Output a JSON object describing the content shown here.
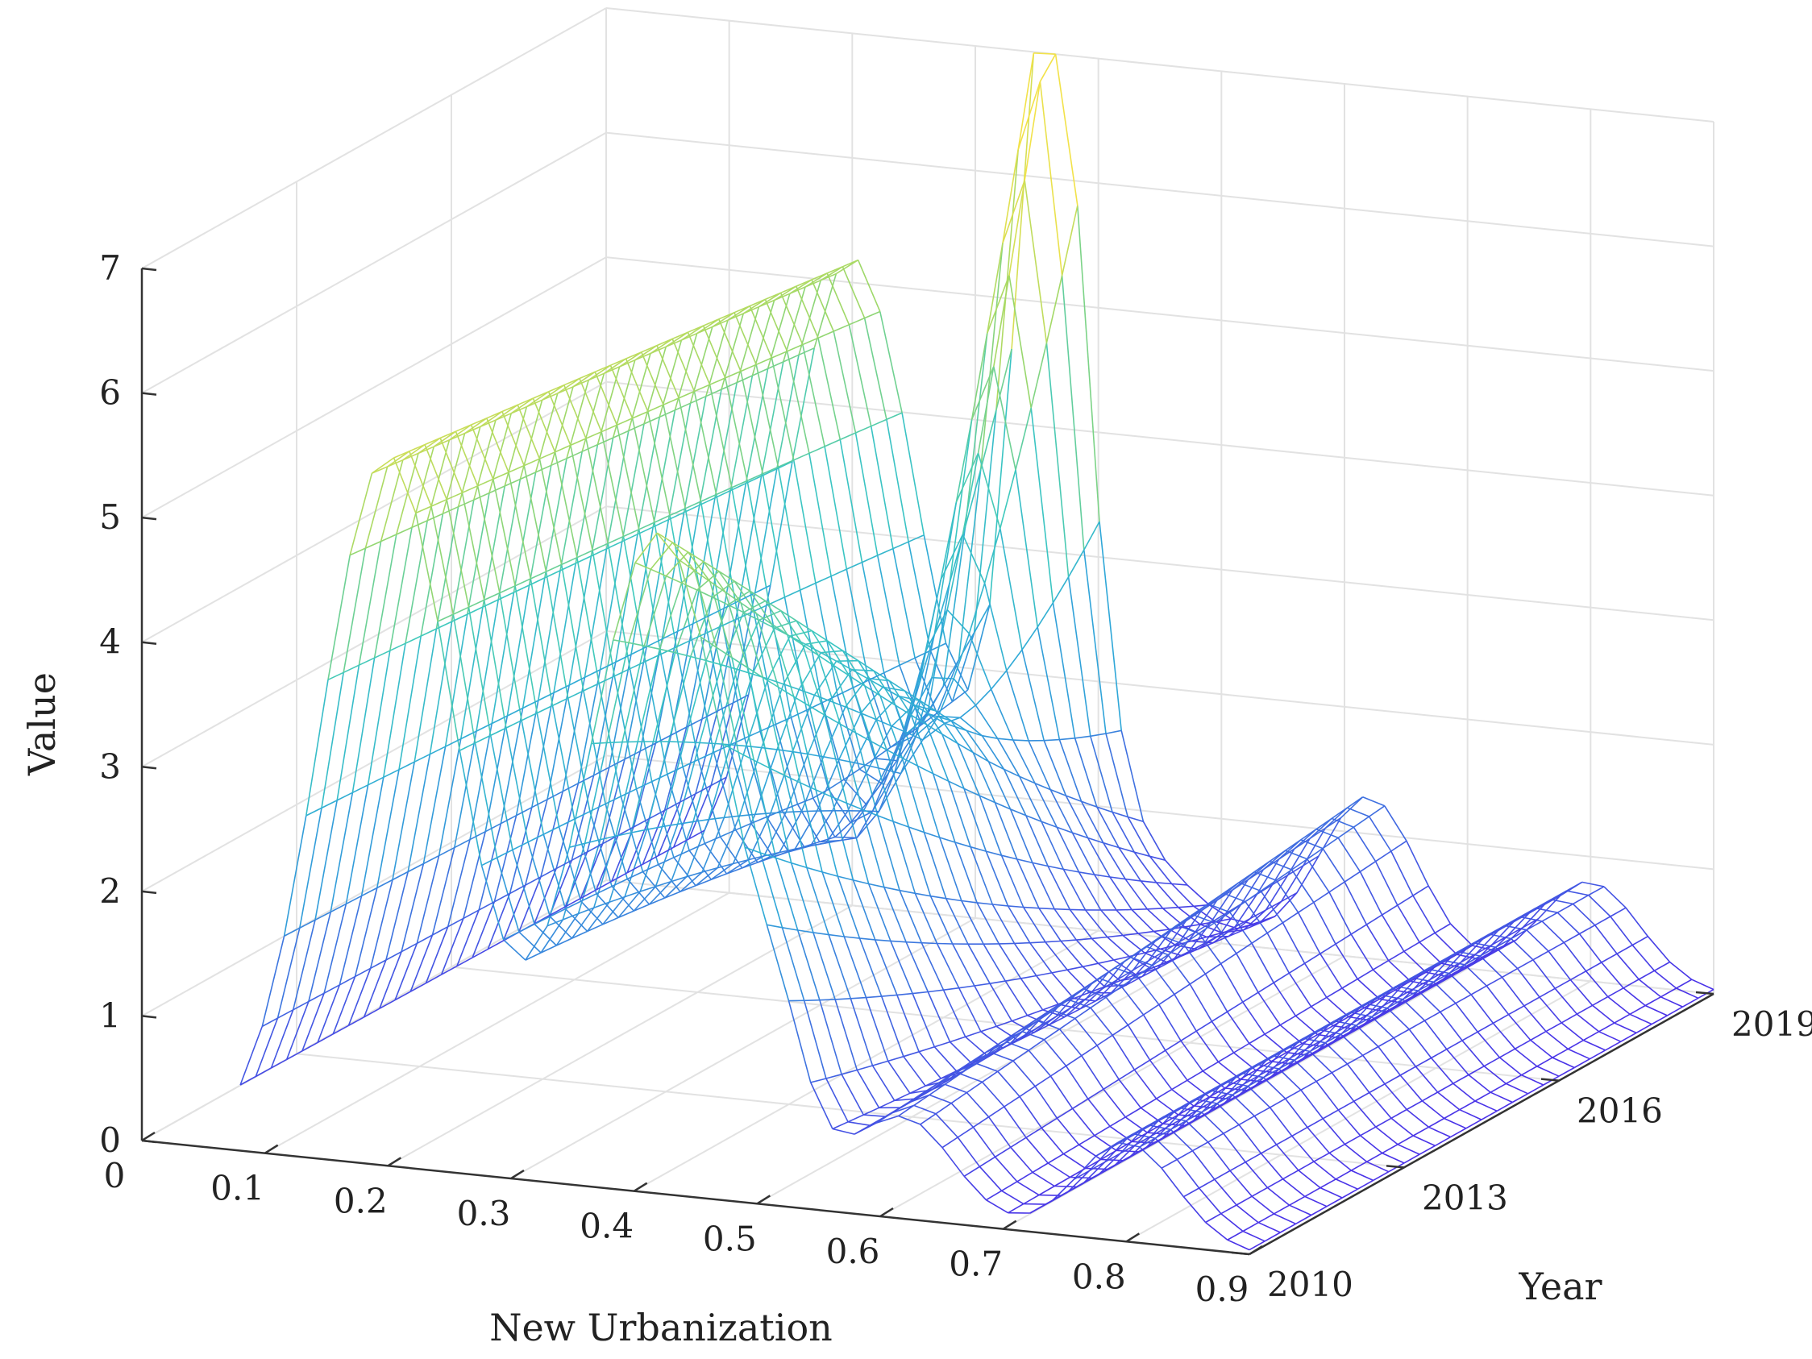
{
  "chart_data": {
    "type": "surface",
    "xlabel": "New Urbanization",
    "ylabel": "Year",
    "zlabel": "Value",
    "x_ticks": [
      "0",
      "0.1",
      "0.2",
      "0.3",
      "0.4",
      "0.5",
      "0.6",
      "0.7",
      "0.8",
      "0.9"
    ],
    "y_ticks": [
      "2010",
      "2013",
      "2016",
      "2019"
    ],
    "z_ticks": [
      "0",
      "1",
      "2",
      "3",
      "4",
      "5",
      "6",
      "7"
    ],
    "xlim": [
      0,
      0.9
    ],
    "ylim": [
      2010,
      2019
    ],
    "zlim": [
      0,
      7
    ],
    "grid": true,
    "colormap": [
      "#4a2fe8",
      "#3f6fe0",
      "#2fa8d8",
      "#3cc8c0",
      "#9cd86a",
      "#f2e24a"
    ],
    "peaks": [
      {
        "x": 0.2,
        "year_start": 2010,
        "year_end": 2019,
        "value_start": 5.7,
        "value_end": 5.2
      },
      {
        "x": 0.42,
        "year_start": 2010,
        "year_end": 2019,
        "value_start": 5.3,
        "value_end": 0.9
      },
      {
        "x": 0.62,
        "year_start": 2010,
        "year_end": 2019,
        "value_start": 0.8,
        "value_end": 1.3
      },
      {
        "x": 0.8,
        "year_start": 2010,
        "year_end": 2019,
        "value_start": 0.8,
        "value_end": 0.8
      },
      {
        "x": 0.36,
        "year_start": 2016,
        "year_end": 2019,
        "value_start": 0.0,
        "value_end": 6.9
      }
    ]
  }
}
